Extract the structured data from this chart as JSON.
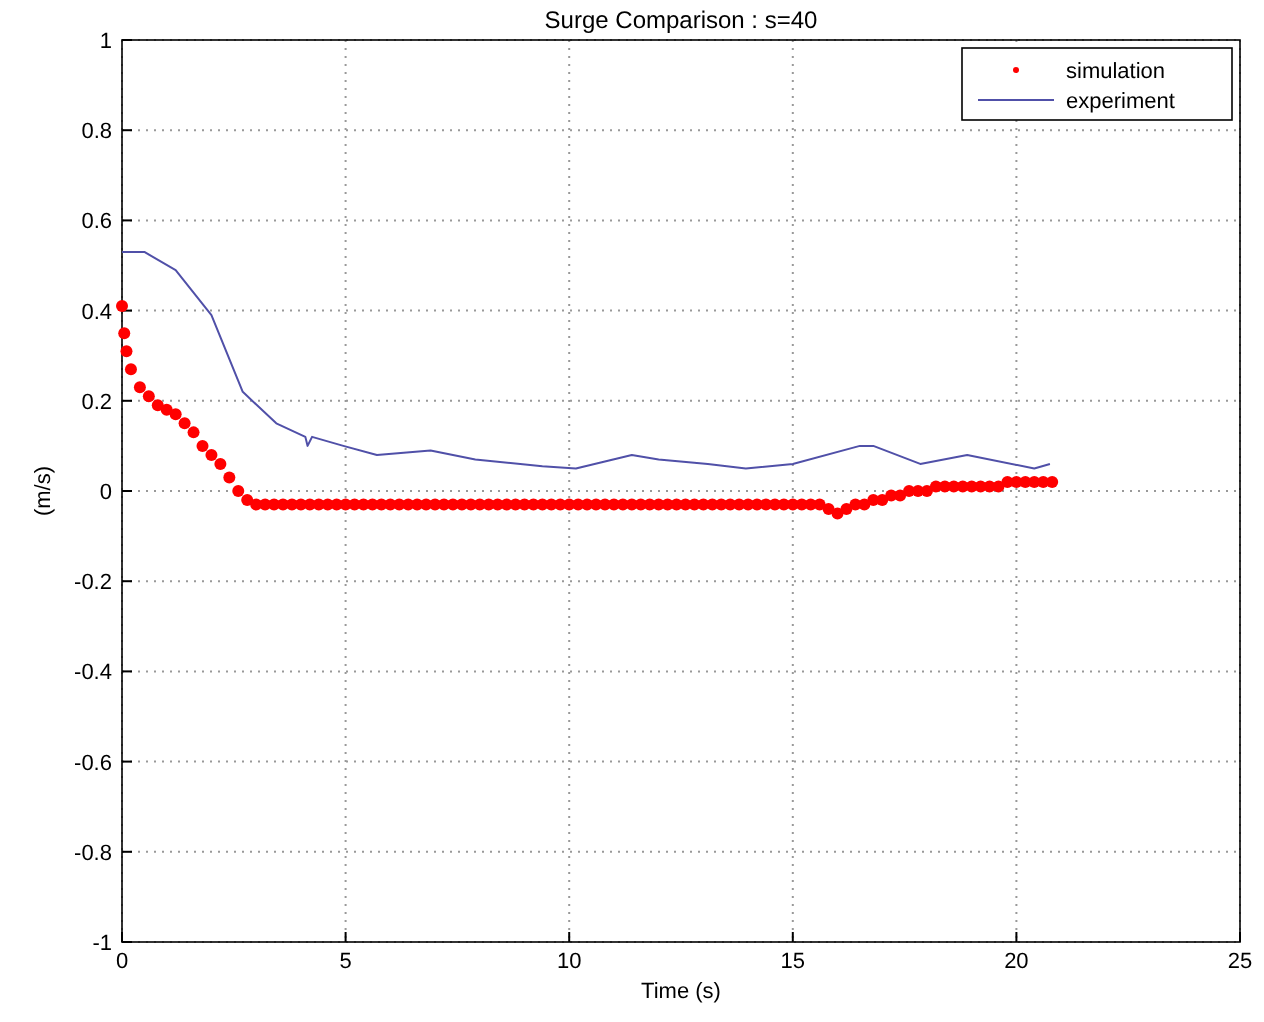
{
  "chart_data": {
    "type": "line",
    "title": "Surge Comparison : s=40",
    "xlabel": "Time (s)",
    "ylabel": "(m/s)",
    "xlim": [
      0,
      25
    ],
    "ylim": [
      -1,
      1
    ],
    "xticks": [
      0,
      5,
      10,
      15,
      20,
      25
    ],
    "yticks": [
      -1,
      -0.8,
      -0.6,
      -0.4,
      -0.2,
      0,
      0.2,
      0.4,
      0.6,
      0.8,
      1
    ],
    "grid": true,
    "legend": "top right",
    "series": [
      {
        "name": "simulation",
        "type": "scatter",
        "marker": "circle",
        "color": "#ff0000",
        "x": [
          0,
          0.05,
          0.1,
          0.2,
          0.4,
          0.6,
          0.8,
          1,
          1.2,
          1.4,
          1.6,
          1.8,
          2,
          2.2,
          2.4,
          2.6,
          2.8,
          3,
          3.2,
          3.4,
          3.6,
          3.8,
          4,
          4.2,
          4.4,
          4.6,
          4.8,
          5,
          5.2,
          5.4,
          5.6,
          5.8,
          6,
          6.2,
          6.4,
          6.6,
          6.8,
          7,
          7.2,
          7.4,
          7.6,
          7.8,
          8,
          8.2,
          8.4,
          8.6,
          8.8,
          9,
          9.2,
          9.4,
          9.6,
          9.8,
          10,
          10.2,
          10.4,
          10.6,
          10.8,
          11,
          11.2,
          11.4,
          11.6,
          11.8,
          12,
          12.2,
          12.4,
          12.6,
          12.8,
          13,
          13.2,
          13.4,
          13.6,
          13.8,
          14,
          14.2,
          14.4,
          14.6,
          14.8,
          15,
          15.2,
          15.4,
          15.6,
          15.8,
          16,
          16.2,
          16.4,
          16.6,
          16.8,
          17,
          17.2,
          17.4,
          17.6,
          17.8,
          18,
          18.2,
          18.4,
          18.6,
          18.8,
          19,
          19.2,
          19.4,
          19.6,
          19.8,
          20,
          20.2,
          20.4,
          20.6,
          20.8
        ],
        "values": [
          0.41,
          0.35,
          0.31,
          0.27,
          0.23,
          0.21,
          0.19,
          0.18,
          0.17,
          0.15,
          0.13,
          0.1,
          0.08,
          0.06,
          0.03,
          0,
          -0.02,
          -0.03,
          -0.03,
          -0.03,
          -0.03,
          -0.03,
          -0.03,
          -0.03,
          -0.03,
          -0.03,
          -0.03,
          -0.03,
          -0.03,
          -0.03,
          -0.03,
          -0.03,
          -0.03,
          -0.03,
          -0.03,
          -0.03,
          -0.03,
          -0.03,
          -0.03,
          -0.03,
          -0.03,
          -0.03,
          -0.03,
          -0.03,
          -0.03,
          -0.03,
          -0.03,
          -0.03,
          -0.03,
          -0.03,
          -0.03,
          -0.03,
          -0.03,
          -0.03,
          -0.03,
          -0.03,
          -0.03,
          -0.03,
          -0.03,
          -0.03,
          -0.03,
          -0.03,
          -0.03,
          -0.03,
          -0.03,
          -0.03,
          -0.03,
          -0.03,
          -0.03,
          -0.03,
          -0.03,
          -0.03,
          -0.03,
          -0.03,
          -0.03,
          -0.03,
          -0.03,
          -0.03,
          -0.03,
          -0.03,
          -0.03,
          -0.04,
          -0.05,
          -0.04,
          -0.03,
          -0.03,
          -0.02,
          -0.02,
          -0.01,
          -0.01,
          0,
          0,
          0,
          0.01,
          0.01,
          0.01,
          0.01,
          0.01,
          0.01,
          0.01,
          0.01,
          0.02,
          0.02,
          0.02,
          0.02,
          0.02,
          0.02
        ]
      },
      {
        "name": "experiment",
        "marker": "none",
        "color": "#5050a8",
        "x": [
          0,
          0.5,
          1.2,
          2,
          2.7,
          3.45,
          4.1,
          4.15,
          4.25,
          4.95,
          5.7,
          6.9,
          7.9,
          9.4,
          10.15,
          11.4,
          12,
          13.1,
          13.95,
          15,
          16.5,
          16.8,
          17.85,
          18.9,
          20.4,
          20.75
        ],
        "values": [
          0.53,
          0.53,
          0.49,
          0.39,
          0.22,
          0.15,
          0.12,
          0.1,
          0.12,
          0.1,
          0.08,
          0.09,
          0.07,
          0.055,
          0.05,
          0.08,
          0.07,
          0.06,
          0.05,
          0.06,
          0.1,
          0.1,
          0.06,
          0.08,
          0.05,
          0.06
        ]
      }
    ]
  }
}
